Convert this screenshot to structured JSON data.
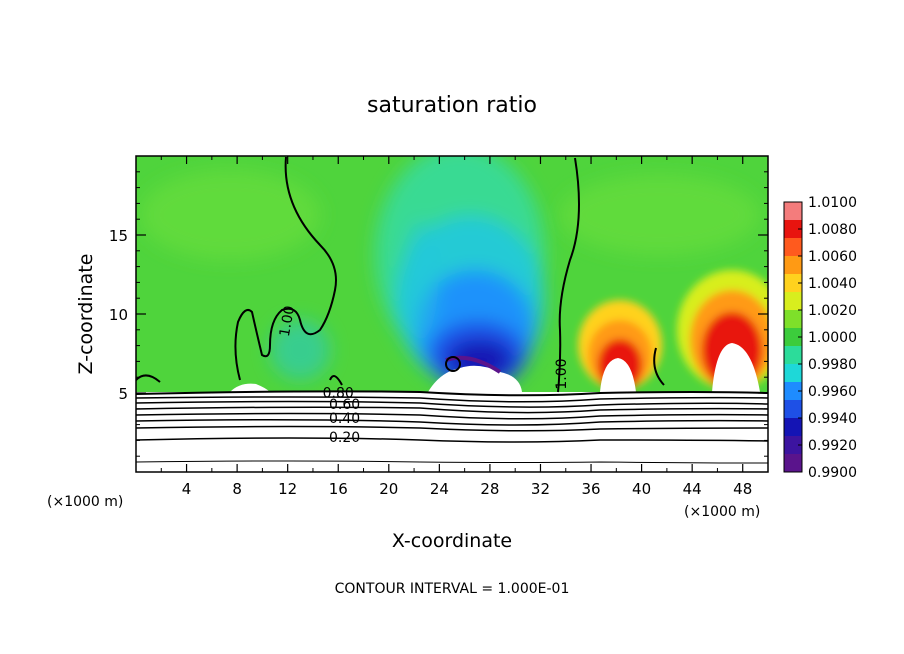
{
  "chart_data": {
    "type": "heatmap",
    "title": "saturation ratio",
    "xlabel": "X-coordinate",
    "ylabel": "Z-coordinate",
    "x_unit_left": "(×1000 m)",
    "x_unit_right": "(×1000 m)",
    "footer": "CONTOUR INTERVAL = 1.000E-01",
    "xlim": [
      0,
      50
    ],
    "ylim": [
      0,
      20
    ],
    "x_ticks": [
      "4",
      "8",
      "12",
      "16",
      "20",
      "24",
      "28",
      "32",
      "36",
      "40",
      "44",
      "48"
    ],
    "y_ticks": [
      "5",
      "10",
      "15"
    ],
    "colorbar": {
      "ticks": [
        "1.0100",
        "1.0080",
        "1.0060",
        "1.0040",
        "1.0020",
        "1.0000",
        "0.9980",
        "0.9960",
        "0.9940",
        "0.9920",
        "0.9900"
      ],
      "colors": [
        "#f47c7c",
        "#e8140f",
        "#ff5a1e",
        "#ff9a14",
        "#ffd21e",
        "#d8ee1e",
        "#7ee02a",
        "#3ccc3c",
        "#2cdc9a",
        "#1ed8d8",
        "#1e8cff",
        "#1e50e6",
        "#1414b4",
        "#3c14a0",
        "#5a148c"
      ]
    },
    "contour_labels": [
      {
        "text": "1.00",
        "x": 12.3,
        "z": 9.5,
        "rotate": -80
      },
      {
        "text": "1.00",
        "x": 34.0,
        "z": 6.2,
        "rotate": -90
      },
      {
        "text": "0.80",
        "x": 16.0,
        "z": 4.7,
        "rotate": 0
      },
      {
        "text": "0.60",
        "x": 16.5,
        "z": 4.0,
        "rotate": 0
      },
      {
        "text": "0.40",
        "x": 16.5,
        "z": 3.1,
        "rotate": 0
      },
      {
        "text": "0.20",
        "x": 16.5,
        "z": 1.9,
        "rotate": 0
      }
    ]
  }
}
